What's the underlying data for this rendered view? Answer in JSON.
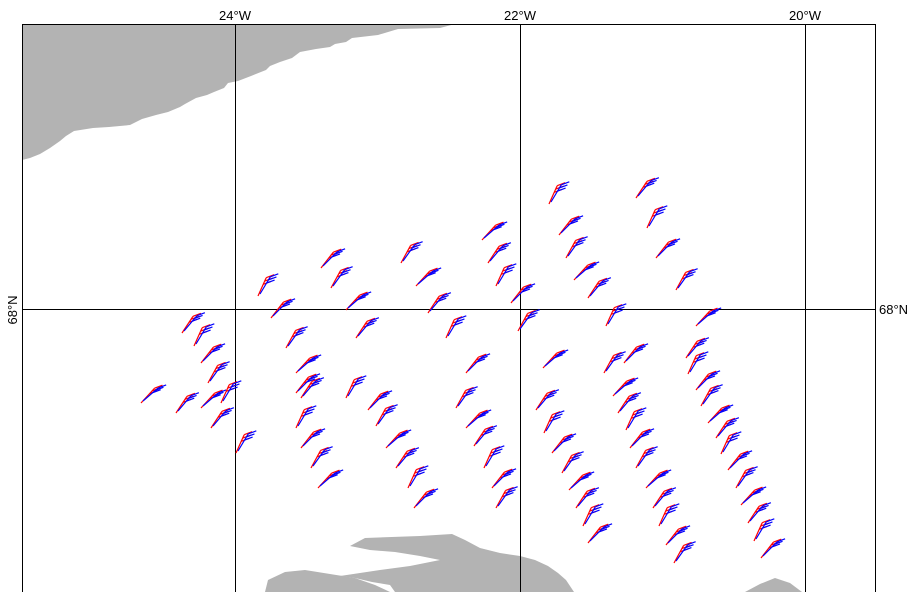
{
  "map": {
    "longitude_labels": [
      "24°W",
      "22°W",
      "20°W"
    ],
    "latitude_labels": [
      "68°N",
      "68°N"
    ],
    "colors": {
      "land": "#b3b3b3",
      "frame": "#000000",
      "grid": "#000000",
      "wind_barbs_series_1": "#ff0000",
      "wind_barbs_series_2": "#0000ff"
    },
    "graticule": {
      "longitudes_deg_west": [
        24,
        22,
        20
      ],
      "latitudes_deg_north": [
        68
      ]
    }
  }
}
